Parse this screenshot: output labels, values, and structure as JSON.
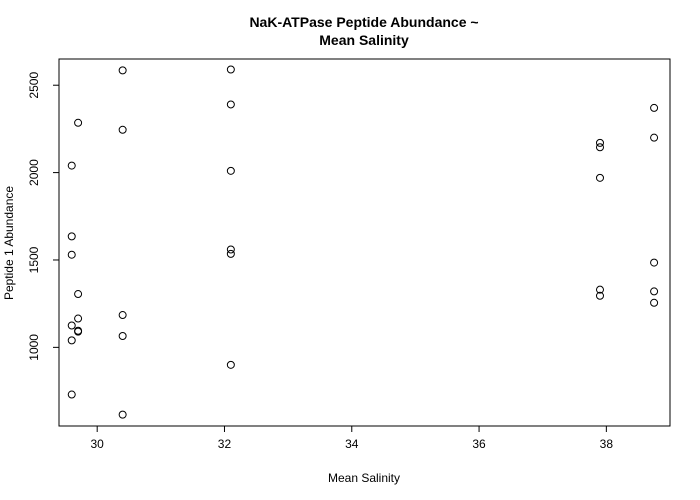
{
  "chart_data": {
    "type": "scatter",
    "title_lines": [
      "NaK-ATPase Peptide Abundance ~",
      "Mean Salinity"
    ],
    "xlabel": "Mean Salinity",
    "ylabel": "Peptide 1 Abundance",
    "xlim": [
      29.4,
      39.0
    ],
    "ylim": [
      550,
      2650
    ],
    "xticks": [
      30,
      32,
      34,
      36,
      38
    ],
    "yticks": [
      1000,
      1500,
      2000,
      2500
    ],
    "xtick_labels": [
      "30",
      "32",
      "34",
      "36",
      "38"
    ],
    "ytick_labels": [
      "1000",
      "1500",
      "2000",
      "2500"
    ],
    "grid": false,
    "points": [
      {
        "x": 29.6,
        "y": 2040
      },
      {
        "x": 29.6,
        "y": 1635
      },
      {
        "x": 29.6,
        "y": 1530
      },
      {
        "x": 29.6,
        "y": 1125
      },
      {
        "x": 29.6,
        "y": 1040
      },
      {
        "x": 29.6,
        "y": 730
      },
      {
        "x": 29.7,
        "y": 2285
      },
      {
        "x": 29.7,
        "y": 1305
      },
      {
        "x": 29.7,
        "y": 1165
      },
      {
        "x": 29.7,
        "y": 1095
      },
      {
        "x": 29.7,
        "y": 1090
      },
      {
        "x": 30.4,
        "y": 2585
      },
      {
        "x": 30.4,
        "y": 2245
      },
      {
        "x": 30.4,
        "y": 1185
      },
      {
        "x": 30.4,
        "y": 1065
      },
      {
        "x": 30.4,
        "y": 615
      },
      {
        "x": 32.1,
        "y": 2590
      },
      {
        "x": 32.1,
        "y": 2390
      },
      {
        "x": 32.1,
        "y": 2010
      },
      {
        "x": 32.1,
        "y": 1560
      },
      {
        "x": 32.1,
        "y": 1535
      },
      {
        "x": 32.1,
        "y": 900
      },
      {
        "x": 37.9,
        "y": 2170
      },
      {
        "x": 37.9,
        "y": 2145
      },
      {
        "x": 37.9,
        "y": 1970
      },
      {
        "x": 37.9,
        "y": 1330
      },
      {
        "x": 37.9,
        "y": 1295
      },
      {
        "x": 38.75,
        "y": 2370
      },
      {
        "x": 38.75,
        "y": 2200
      },
      {
        "x": 38.75,
        "y": 1485
      },
      {
        "x": 38.75,
        "y": 1320
      },
      {
        "x": 38.75,
        "y": 1255
      }
    ]
  }
}
